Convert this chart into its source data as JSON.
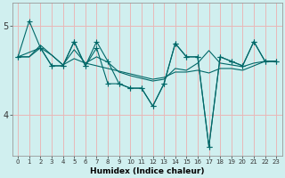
{
  "xlabel": "Humidex (Indice chaleur)",
  "bg_color": "#d0efef",
  "plot_bg_color": "#d0efef",
  "line_color": "#006868",
  "grid_color": "#e8b8b8",
  "ylim": [
    3.55,
    5.25
  ],
  "xlim": [
    -0.5,
    23.5
  ],
  "series1_x": [
    0,
    1,
    2,
    3,
    4,
    5,
    6,
    7,
    8,
    9,
    10,
    11,
    12,
    13,
    14,
    15,
    16,
    17,
    18,
    19,
    20,
    21,
    22,
    23
  ],
  "series1_y": [
    4.65,
    5.05,
    4.75,
    4.55,
    4.55,
    4.82,
    4.55,
    4.82,
    4.6,
    4.35,
    4.3,
    4.3,
    4.1,
    4.35,
    4.8,
    4.65,
    4.65,
    3.65,
    4.65,
    4.6,
    4.55,
    4.82,
    4.6,
    4.6
  ],
  "series2_x": [
    0,
    1,
    2,
    3,
    4,
    5,
    6,
    7,
    8,
    9,
    10,
    11,
    12,
    13,
    14,
    15,
    16,
    17,
    18,
    19,
    20,
    21,
    22,
    23
  ],
  "series2_y": [
    4.65,
    4.65,
    4.78,
    4.67,
    4.56,
    4.63,
    4.58,
    4.55,
    4.52,
    4.49,
    4.46,
    4.43,
    4.4,
    4.42,
    4.48,
    4.48,
    4.5,
    4.47,
    4.52,
    4.52,
    4.5,
    4.55,
    4.6,
    4.6
  ],
  "series3_x": [
    0,
    1,
    2,
    3,
    4,
    5,
    6,
    7,
    8,
    9,
    10,
    11,
    12,
    13,
    14,
    15,
    16,
    17,
    18,
    19,
    20,
    21,
    22,
    23
  ],
  "series3_y": [
    4.65,
    4.65,
    4.75,
    4.67,
    4.56,
    4.73,
    4.58,
    4.65,
    4.59,
    4.48,
    4.44,
    4.41,
    4.38,
    4.4,
    4.52,
    4.5,
    4.58,
    4.72,
    4.58,
    4.56,
    4.54,
    4.58,
    4.6,
    4.6
  ],
  "series4_x": [
    0,
    2,
    3,
    4,
    5,
    6,
    7,
    8,
    9,
    10,
    11,
    12,
    13,
    14,
    15,
    16,
    17,
    18,
    19,
    20,
    21,
    22,
    23
  ],
  "series4_y": [
    4.65,
    4.75,
    4.55,
    4.55,
    4.82,
    4.55,
    4.75,
    4.35,
    4.35,
    4.3,
    4.3,
    4.1,
    4.35,
    4.8,
    4.65,
    4.65,
    3.65,
    4.65,
    4.6,
    4.55,
    4.82,
    4.6,
    4.6
  ],
  "yticks": [
    4,
    5
  ],
  "xticks": [
    0,
    1,
    2,
    3,
    4,
    5,
    6,
    7,
    8,
    9,
    10,
    11,
    12,
    13,
    14,
    15,
    16,
    17,
    18,
    19,
    20,
    21,
    22,
    23
  ],
  "marker": "+",
  "markersize": 4,
  "linewidth": 0.8
}
